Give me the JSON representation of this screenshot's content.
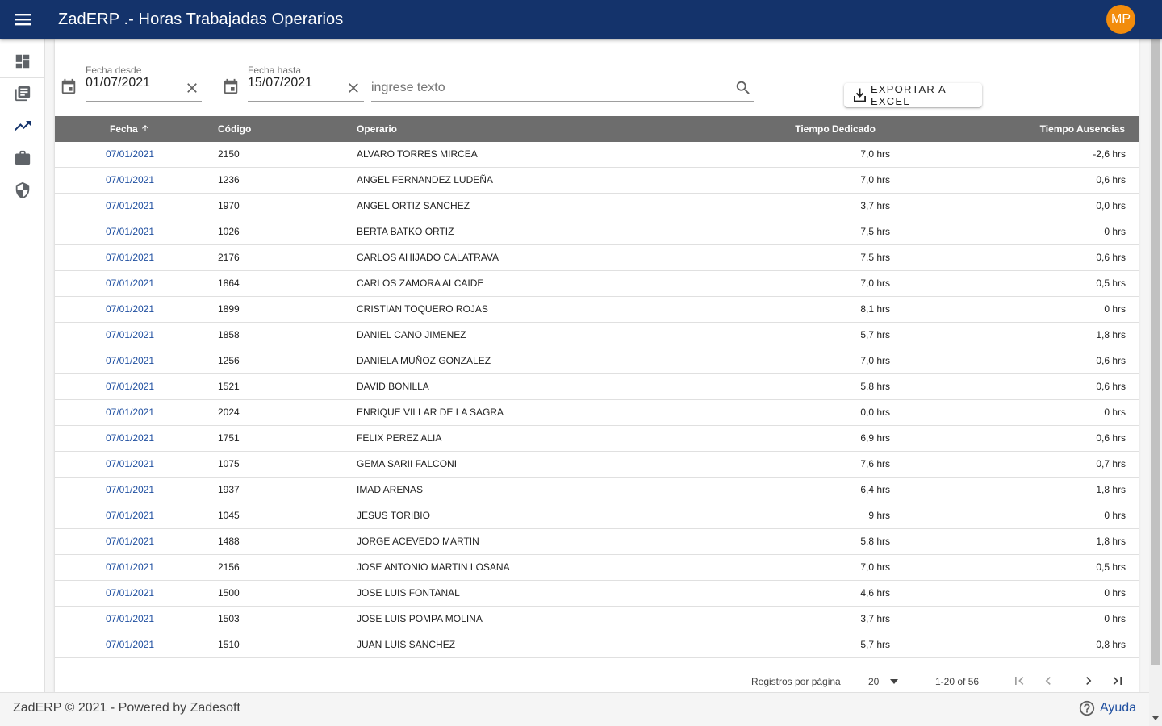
{
  "app": {
    "title": "ZadERP .- Horas Trabajadas Operarios",
    "avatar_initials": "MP",
    "primary_color": "#14336b",
    "avatar_color": "#f28c0c"
  },
  "sidebar": {
    "items": [
      {
        "icon": "dashboard-icon"
      },
      {
        "icon": "library-books-icon"
      },
      {
        "icon": "trending-up-icon"
      },
      {
        "icon": "briefcase-icon"
      },
      {
        "icon": "security-shield-icon"
      }
    ]
  },
  "filters": {
    "fecha_desde": {
      "label": "Fecha desde",
      "value": "01/07/2021"
    },
    "fecha_hasta": {
      "label": "Fecha hasta",
      "value": "15/07/2021"
    },
    "search": {
      "placeholder": "ingrese texto",
      "value": ""
    },
    "export_label": "EXPORTAR A EXCEL"
  },
  "table": {
    "columns": {
      "fecha": "Fecha",
      "codigo": "Código",
      "operario": "Operario",
      "tiempo": "Tiempo Dedicado",
      "ausencias": "Tiempo Ausencias"
    },
    "sort": {
      "column": "fecha",
      "direction": "asc"
    },
    "rows": [
      {
        "fecha": "07/01/2021",
        "codigo": "2150",
        "operario": "ALVARO TORRES MIRCEA",
        "tiempo": "7,0 hrs",
        "ausencias": "-2,6 hrs"
      },
      {
        "fecha": "07/01/2021",
        "codigo": "1236",
        "operario": "ANGEL FERNANDEZ LUDEÑA",
        "tiempo": "7,0 hrs",
        "ausencias": "0,6 hrs"
      },
      {
        "fecha": "07/01/2021",
        "codigo": "1970",
        "operario": "ANGEL ORTIZ SANCHEZ",
        "tiempo": "3,7 hrs",
        "ausencias": "0,0 hrs"
      },
      {
        "fecha": "07/01/2021",
        "codigo": "1026",
        "operario": "BERTA BATKO ORTIZ",
        "tiempo": "7,5 hrs",
        "ausencias": "0 hrs"
      },
      {
        "fecha": "07/01/2021",
        "codigo": "2176",
        "operario": "CARLOS AHIJADO CALATRAVA",
        "tiempo": "7,5 hrs",
        "ausencias": "0,6 hrs"
      },
      {
        "fecha": "07/01/2021",
        "codigo": "1864",
        "operario": "CARLOS ZAMORA ALCAIDE",
        "tiempo": "7,0 hrs",
        "ausencias": "0,5 hrs"
      },
      {
        "fecha": "07/01/2021",
        "codigo": "1899",
        "operario": "CRISTIAN TOQUERO ROJAS",
        "tiempo": "8,1 hrs",
        "ausencias": "0 hrs"
      },
      {
        "fecha": "07/01/2021",
        "codigo": "1858",
        "operario": "DANIEL CANO JIMENEZ",
        "tiempo": "5,7 hrs",
        "ausencias": "1,8 hrs"
      },
      {
        "fecha": "07/01/2021",
        "codigo": "1256",
        "operario": "DANIELA MUÑOZ GONZALEZ",
        "tiempo": "7,0 hrs",
        "ausencias": "0,6 hrs"
      },
      {
        "fecha": "07/01/2021",
        "codigo": "1521",
        "operario": "DAVID BONILLA",
        "tiempo": "5,8 hrs",
        "ausencias": "0,6 hrs"
      },
      {
        "fecha": "07/01/2021",
        "codigo": "2024",
        "operario": "ENRIQUE VILLAR DE LA SAGRA",
        "tiempo": "0,0 hrs",
        "ausencias": "0 hrs"
      },
      {
        "fecha": "07/01/2021",
        "codigo": "1751",
        "operario": "FELIX PEREZ ALIA",
        "tiempo": "6,9 hrs",
        "ausencias": "0,6 hrs"
      },
      {
        "fecha": "07/01/2021",
        "codigo": "1075",
        "operario": "GEMA SARII FALCONI",
        "tiempo": "7,6 hrs",
        "ausencias": "0,7 hrs"
      },
      {
        "fecha": "07/01/2021",
        "codigo": "1937",
        "operario": "IMAD ARENAS",
        "tiempo": "6,4 hrs",
        "ausencias": "1,8 hrs"
      },
      {
        "fecha": "07/01/2021",
        "codigo": "1045",
        "operario": "JESUS TORIBIO",
        "tiempo": "9 hrs",
        "ausencias": "0 hrs"
      },
      {
        "fecha": "07/01/2021",
        "codigo": "1488",
        "operario": "JORGE ACEVEDO MARTIN",
        "tiempo": "5,8 hrs",
        "ausencias": "1,8 hrs"
      },
      {
        "fecha": "07/01/2021",
        "codigo": "2156",
        "operario": "JOSE ANTONIO MARTIN LOSANA",
        "tiempo": "7,0 hrs",
        "ausencias": "0,5 hrs"
      },
      {
        "fecha": "07/01/2021",
        "codigo": "1500",
        "operario": "JOSE LUIS FONTANAL",
        "tiempo": "4,6 hrs",
        "ausencias": "0 hrs"
      },
      {
        "fecha": "07/01/2021",
        "codigo": "1503",
        "operario": "JOSE LUIS POMPA MOLINA",
        "tiempo": "3,7 hrs",
        "ausencias": "0 hrs"
      },
      {
        "fecha": "07/01/2021",
        "codigo": "1510",
        "operario": "JUAN LUIS SANCHEZ",
        "tiempo": "5,7 hrs",
        "ausencias": "0,8 hrs"
      }
    ]
  },
  "paginator": {
    "rows_per_page_label": "Registros por página",
    "rows_per_page": "20",
    "range": "1-20 of 56"
  },
  "footer": {
    "text": "ZadERP © 2021 - Powered by Zadesoft",
    "help_label": "Ayuda"
  }
}
